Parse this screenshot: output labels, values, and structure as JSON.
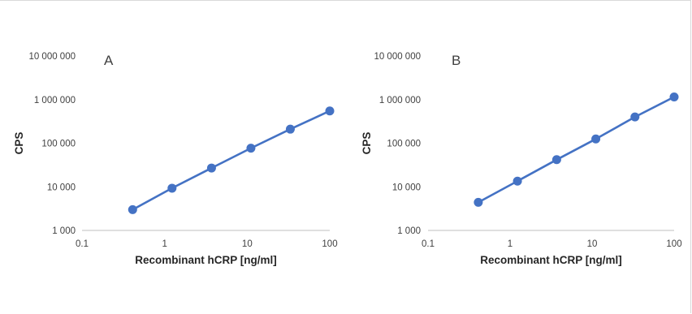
{
  "chart_data": [
    {
      "type": "line",
      "panel_label": "A",
      "xlabel": "Recombinant hCRP [ng/ml]",
      "ylabel": "CPS",
      "x_scale": "log",
      "y_scale": "log",
      "xlim": [
        0.1,
        100
      ],
      "ylim": [
        1000,
        10000000
      ],
      "x_ticks": [
        "0.1",
        "1",
        "10",
        "100"
      ],
      "y_ticks": [
        "1 000",
        "10 000",
        "100 000",
        "1 000 000",
        "10 000 000"
      ],
      "grid": false,
      "series": [
        {
          "x": [
            0.41,
            1.23,
            3.7,
            11.1,
            33.3,
            100
          ],
          "y": [
            3000,
            9300,
            27000,
            77000,
            210000,
            550000
          ],
          "color": "#4472c4"
        }
      ]
    },
    {
      "type": "line",
      "panel_label": "B",
      "xlabel": "Recombinant hCRP [ng/ml]",
      "ylabel": "CPS",
      "x_scale": "log",
      "y_scale": "log",
      "xlim": [
        0.1,
        100
      ],
      "ylim": [
        1000,
        10000000
      ],
      "x_ticks": [
        "0.1",
        "1",
        "10",
        "100"
      ],
      "y_ticks": [
        "1 000",
        "10 000",
        "100 000",
        "1 000 000",
        "10 000 000"
      ],
      "grid": false,
      "series": [
        {
          "x": [
            0.41,
            1.23,
            3.7,
            11.1,
            33.3,
            100
          ],
          "y": [
            4400,
            13500,
            42000,
            125000,
            400000,
            1150000
          ],
          "color": "#4472c4"
        }
      ]
    }
  ]
}
